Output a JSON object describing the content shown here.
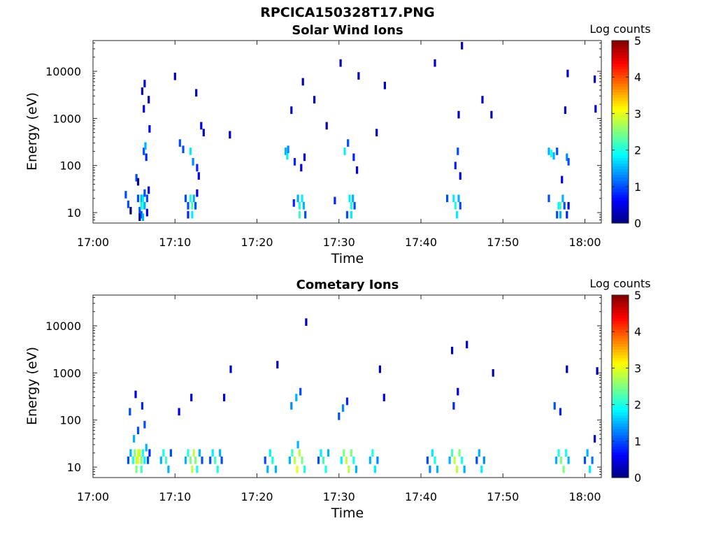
{
  "figure": {
    "title": "RPCICA150328T17.PNG"
  },
  "colorbar": {
    "label": "Log counts",
    "ticks": [
      "0",
      "1",
      "2",
      "3",
      "4",
      "5"
    ],
    "colormap": "jet",
    "range": [
      0,
      5
    ]
  },
  "chart_data": [
    {
      "type": "heatmap",
      "title": "Solar Wind Ions",
      "xlabel": "Time",
      "ylabel": "Energy (eV)",
      "xticks": [
        "17:00",
        "17:10",
        "17:20",
        "17:30",
        "17:40",
        "17:50",
        "18:00"
      ],
      "yticks": [
        "10",
        "100",
        "1000",
        "10000"
      ],
      "xlim_minutes": [
        0,
        62
      ],
      "ylim_eV": [
        6,
        45000
      ],
      "yscale": "log",
      "cells": [
        [
          4.0,
          24,
          1
        ],
        [
          4.3,
          15,
          1
        ],
        [
          4.6,
          11,
          0
        ],
        [
          5.3,
          55,
          1
        ],
        [
          5.5,
          45,
          0
        ],
        [
          5.5,
          20,
          1
        ],
        [
          5.7,
          11,
          1
        ],
        [
          5.7,
          8,
          0
        ],
        [
          5.9,
          20,
          1.5
        ],
        [
          5.9,
          14,
          1.8
        ],
        [
          5.9,
          9,
          1
        ],
        [
          6.1,
          20,
          1.8
        ],
        [
          6.1,
          14,
          2.2
        ],
        [
          6.1,
          8,
          1.5
        ],
        [
          6.3,
          26,
          1
        ],
        [
          6.3,
          14,
          1.5
        ],
        [
          6.6,
          20,
          1
        ],
        [
          6.6,
          10,
          0.5
        ],
        [
          6.8,
          30,
          0.5
        ],
        [
          6.2,
          200,
          1
        ],
        [
          6.4,
          260,
          1.5
        ],
        [
          6.5,
          150,
          0.8
        ],
        [
          6.2,
          1600,
          0.5
        ],
        [
          6.0,
          3800,
          0.3
        ],
        [
          6.3,
          5500,
          0.5
        ],
        [
          6.8,
          2500,
          0.3
        ],
        [
          6.9,
          600,
          0.5
        ],
        [
          11.3,
          20,
          1
        ],
        [
          11.6,
          14,
          1
        ],
        [
          11.6,
          9,
          0.8
        ],
        [
          11.9,
          20,
          2
        ],
        [
          12.1,
          14,
          2.2
        ],
        [
          12.1,
          9,
          1.8
        ],
        [
          12.3,
          20,
          1.5
        ],
        [
          12.5,
          14,
          1
        ],
        [
          12.7,
          26,
          0.5
        ],
        [
          10.6,
          300,
          1
        ],
        [
          11.0,
          220,
          1
        ],
        [
          11.9,
          200,
          1.8
        ],
        [
          12.2,
          120,
          1.3
        ],
        [
          12.7,
          90,
          0.8
        ],
        [
          12.9,
          60,
          0.5
        ],
        [
          12.6,
          3500,
          0.3
        ],
        [
          13.2,
          700,
          0.5
        ],
        [
          13.5,
          500,
          0.3
        ],
        [
          10.0,
          7800,
          0.3
        ],
        [
          16.7,
          450,
          0.4
        ],
        [
          24.5,
          16,
          0.8
        ],
        [
          25.0,
          20,
          1.5
        ],
        [
          25.2,
          14,
          2
        ],
        [
          25.2,
          9,
          2.2
        ],
        [
          25.5,
          20,
          1.8
        ],
        [
          25.7,
          14,
          1.5
        ],
        [
          25.9,
          9,
          1
        ],
        [
          23.5,
          200,
          1.5
        ],
        [
          23.7,
          160,
          1.8
        ],
        [
          23.8,
          220,
          1.3
        ],
        [
          24.6,
          120,
          0.8
        ],
        [
          25.4,
          90,
          0.5
        ],
        [
          25.8,
          150,
          0.5
        ],
        [
          24.2,
          1500,
          0.4
        ],
        [
          25.6,
          6000,
          0.3
        ],
        [
          27.0,
          2500,
          0.3
        ],
        [
          31.0,
          9,
          1
        ],
        [
          31.3,
          20,
          1.8
        ],
        [
          31.5,
          14,
          2
        ],
        [
          31.5,
          9,
          1.8
        ],
        [
          31.7,
          20,
          1.5
        ],
        [
          31.9,
          14,
          1
        ],
        [
          29.5,
          18,
          0.8
        ],
        [
          30.7,
          200,
          1.8
        ],
        [
          31.1,
          300,
          1
        ],
        [
          31.8,
          150,
          0.8
        ],
        [
          32.2,
          80,
          0.5
        ],
        [
          28.5,
          700,
          0.3
        ],
        [
          30.2,
          15000,
          0.3
        ],
        [
          32.4,
          8000,
          0.3
        ],
        [
          34.6,
          500,
          0.3
        ],
        [
          35.6,
          5000,
          0.3
        ],
        [
          43.2,
          20,
          1
        ],
        [
          44.0,
          20,
          1.8
        ],
        [
          44.2,
          14,
          2
        ],
        [
          44.4,
          9,
          1.8
        ],
        [
          44.6,
          20,
          1.5
        ],
        [
          44.8,
          14,
          1
        ],
        [
          44.5,
          200,
          1
        ],
        [
          44.2,
          100,
          0.8
        ],
        [
          44.8,
          60,
          0.5
        ],
        [
          44.6,
          1200,
          0.3
        ],
        [
          45.0,
          35000,
          0.3
        ],
        [
          41.7,
          15000,
          0.3
        ],
        [
          48.6,
          1200,
          0.3
        ],
        [
          47.5,
          2500,
          0.3
        ],
        [
          55.6,
          20,
          1
        ],
        [
          56.6,
          9,
          1
        ],
        [
          56.8,
          14,
          1.8
        ],
        [
          57.0,
          14,
          2.2
        ],
        [
          57.0,
          9,
          1.5
        ],
        [
          57.3,
          20,
          1.5
        ],
        [
          57.5,
          14,
          1
        ],
        [
          57.8,
          9,
          0.8
        ],
        [
          58.0,
          14,
          0.5
        ],
        [
          55.6,
          200,
          1.5
        ],
        [
          55.9,
          180,
          2
        ],
        [
          56.2,
          160,
          1.5
        ],
        [
          56.6,
          200,
          1
        ],
        [
          57.8,
          150,
          1.3
        ],
        [
          58.0,
          120,
          1
        ],
        [
          57.2,
          50,
          0.5
        ],
        [
          57.6,
          1500,
          0.3
        ],
        [
          57.9,
          9000,
          0.3
        ],
        [
          61.2,
          6800,
          0.3
        ],
        [
          61.3,
          1600,
          0.3
        ]
      ]
    },
    {
      "type": "heatmap",
      "title": "Cometary Ions",
      "xlabel": "Time",
      "ylabel": "Energy (eV)",
      "xticks": [
        "17:00",
        "17:10",
        "17:20",
        "17:30",
        "17:40",
        "17:50",
        "18:00"
      ],
      "yticks": [
        "10",
        "100",
        "1000",
        "10000"
      ],
      "xlim_minutes": [
        0,
        62
      ],
      "ylim_eV": [
        6,
        45000
      ],
      "yscale": "log",
      "cells": [
        [
          4.3,
          14,
          1
        ],
        [
          4.6,
          20,
          1.5
        ],
        [
          4.9,
          14,
          2
        ],
        [
          5.1,
          20,
          2.5
        ],
        [
          5.3,
          14,
          2.8
        ],
        [
          5.3,
          9,
          2.5
        ],
        [
          5.5,
          20,
          3
        ],
        [
          5.5,
          14,
          3
        ],
        [
          5.7,
          20,
          2.8
        ],
        [
          5.9,
          14,
          2.5
        ],
        [
          5.9,
          9,
          2.2
        ],
        [
          6.1,
          20,
          2
        ],
        [
          6.3,
          14,
          1.8
        ],
        [
          6.5,
          26,
          1.5
        ],
        [
          6.7,
          14,
          1
        ],
        [
          6.9,
          20,
          0.8
        ],
        [
          5.0,
          40,
          1.5
        ],
        [
          5.5,
          60,
          1
        ],
        [
          6.0,
          200,
          0.8
        ],
        [
          4.5,
          150,
          1
        ],
        [
          5.2,
          350,
          0.5
        ],
        [
          6.3,
          80,
          1
        ],
        [
          8.3,
          14,
          1.5
        ],
        [
          8.6,
          20,
          2
        ],
        [
          8.9,
          14,
          2.2
        ],
        [
          9.2,
          9,
          1.5
        ],
        [
          9.5,
          20,
          1
        ],
        [
          11.3,
          14,
          1.5
        ],
        [
          11.6,
          20,
          2
        ],
        [
          11.9,
          14,
          2.5
        ],
        [
          12.1,
          9,
          2.8
        ],
        [
          12.3,
          20,
          2.8
        ],
        [
          12.5,
          14,
          2.5
        ],
        [
          12.7,
          9,
          2
        ],
        [
          13.0,
          20,
          1.5
        ],
        [
          13.3,
          14,
          1
        ],
        [
          10.5,
          150,
          0.5
        ],
        [
          12.0,
          300,
          0.5
        ],
        [
          14.3,
          14,
          1
        ],
        [
          14.6,
          20,
          1.8
        ],
        [
          14.9,
          14,
          2.2
        ],
        [
          15.2,
          9,
          2
        ],
        [
          15.5,
          20,
          1.5
        ],
        [
          15.7,
          14,
          1
        ],
        [
          16.0,
          300,
          0.5
        ],
        [
          16.8,
          1200,
          0.3
        ],
        [
          21.0,
          14,
          1
        ],
        [
          21.3,
          9,
          1.5
        ],
        [
          21.6,
          20,
          1.8
        ],
        [
          21.9,
          14,
          2
        ],
        [
          22.3,
          9,
          1.5
        ],
        [
          24.0,
          14,
          1.5
        ],
        [
          24.3,
          20,
          2.2
        ],
        [
          24.6,
          14,
          2.8
        ],
        [
          24.9,
          9,
          3
        ],
        [
          25.2,
          20,
          2.8
        ],
        [
          25.5,
          14,
          2.5
        ],
        [
          25.8,
          9,
          2
        ],
        [
          24.2,
          200,
          1.3
        ],
        [
          24.8,
          300,
          1.5
        ],
        [
          25.3,
          400,
          1
        ],
        [
          25.0,
          30,
          1.5
        ],
        [
          26.0,
          12000,
          0.3
        ],
        [
          22.5,
          1500,
          0.3
        ],
        [
          27.5,
          14,
          1
        ],
        [
          27.8,
          20,
          1.8
        ],
        [
          28.1,
          14,
          2.2
        ],
        [
          28.4,
          9,
          2
        ],
        [
          28.7,
          20,
          1.5
        ],
        [
          30.3,
          14,
          1.8
        ],
        [
          30.6,
          20,
          2.5
        ],
        [
          30.9,
          14,
          2.8
        ],
        [
          31.2,
          9,
          2.8
        ],
        [
          31.5,
          20,
          2.5
        ],
        [
          31.8,
          14,
          2
        ],
        [
          32.1,
          9,
          1.5
        ],
        [
          30.0,
          120,
          1
        ],
        [
          30.5,
          180,
          1.3
        ],
        [
          31.0,
          250,
          0.8
        ],
        [
          33.8,
          14,
          1.5
        ],
        [
          34.1,
          20,
          2
        ],
        [
          34.4,
          9,
          1.8
        ],
        [
          34.7,
          14,
          1.3
        ],
        [
          35.5,
          300,
          0.5
        ],
        [
          35.0,
          1200,
          0.3
        ],
        [
          40.8,
          14,
          1
        ],
        [
          41.1,
          9,
          1.3
        ],
        [
          41.4,
          20,
          1.8
        ],
        [
          41.7,
          14,
          2
        ],
        [
          42.0,
          9,
          1.5
        ],
        [
          43.5,
          14,
          1.5
        ],
        [
          43.8,
          20,
          2.2
        ],
        [
          44.1,
          14,
          2.8
        ],
        [
          44.4,
          9,
          2.8
        ],
        [
          44.7,
          20,
          2.5
        ],
        [
          45.0,
          14,
          2
        ],
        [
          45.3,
          9,
          1.5
        ],
        [
          44.0,
          200,
          0.8
        ],
        [
          44.5,
          400,
          0.5
        ],
        [
          43.8,
          3000,
          0.3
        ],
        [
          45.6,
          4000,
          0.3
        ],
        [
          46.8,
          14,
          1
        ],
        [
          47.1,
          20,
          1.5
        ],
        [
          47.4,
          9,
          1.8
        ],
        [
          47.7,
          14,
          1.3
        ],
        [
          48.8,
          1000,
          0.3
        ],
        [
          56.5,
          14,
          1.5
        ],
        [
          56.8,
          20,
          2
        ],
        [
          57.1,
          14,
          2.5
        ],
        [
          57.4,
          9,
          2.5
        ],
        [
          57.7,
          20,
          2
        ],
        [
          58.0,
          14,
          1.5
        ],
        [
          56.3,
          200,
          1
        ],
        [
          57.0,
          150,
          0.8
        ],
        [
          57.8,
          1200,
          0.3
        ],
        [
          60.0,
          14,
          1
        ],
        [
          60.3,
          20,
          1.5
        ],
        [
          60.6,
          9,
          1.8
        ],
        [
          60.9,
          14,
          1.2
        ],
        [
          61.2,
          40,
          0.5
        ],
        [
          61.5,
          1100,
          0.3
        ]
      ]
    }
  ]
}
